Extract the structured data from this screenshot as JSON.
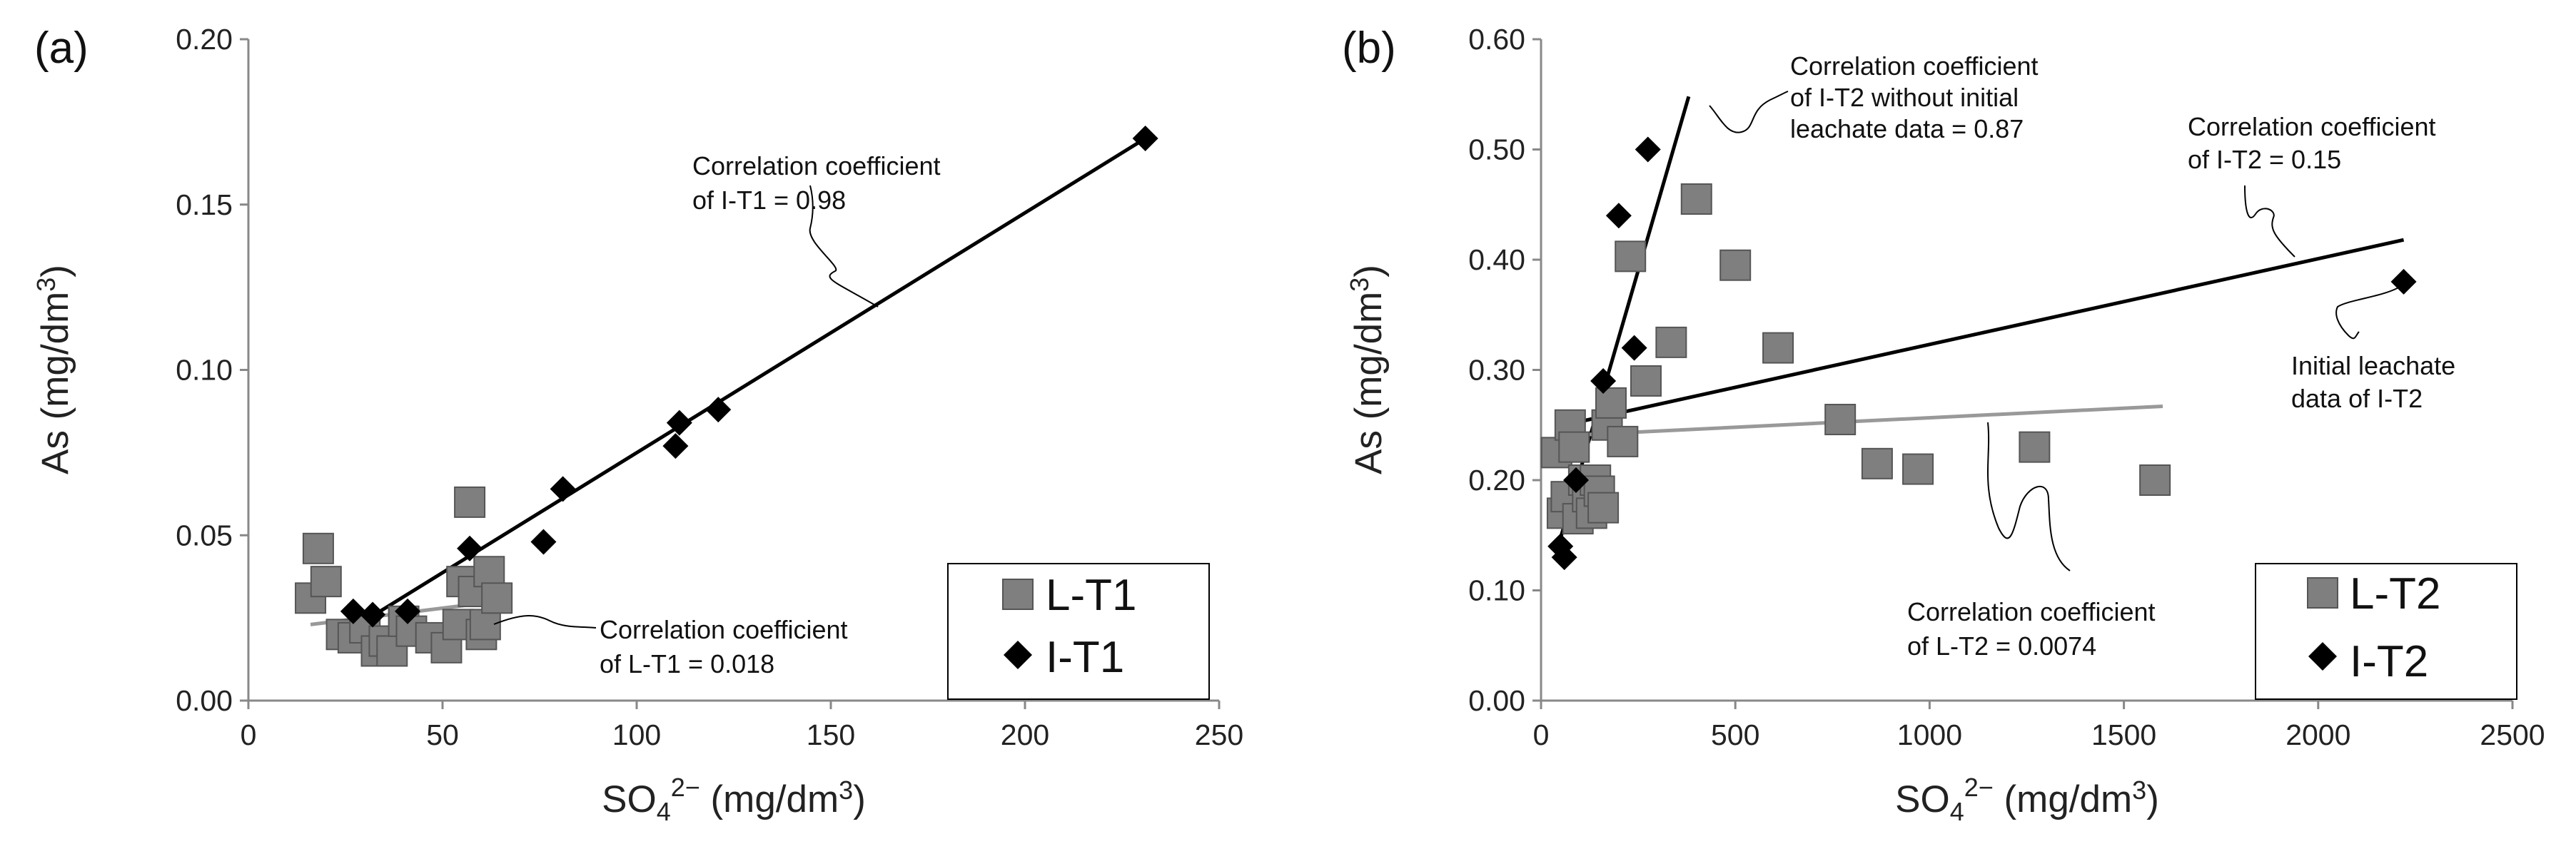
{
  "chart_data": [
    {
      "panel": "(a)",
      "type": "scatter",
      "xlabel": {
        "base": "SO",
        "sub": "4",
        "sup": "2−",
        "units_pre": " (mg/dm",
        "units_sup": "3",
        "units_post": ")"
      },
      "ylabel": {
        "pre": "As (mg/dm",
        "sup": "3",
        "post": ")"
      },
      "xlim": [
        0,
        250
      ],
      "ylim": [
        0,
        0.2
      ],
      "xticks": [
        "0",
        "50",
        "100",
        "150",
        "200",
        "250"
      ],
      "yticks": [
        "0.00",
        "0.05",
        "0.10",
        "0.15",
        "0.20"
      ],
      "grid": false,
      "legend": [
        "L-T1",
        "I-T1"
      ],
      "series": [
        {
          "name": "L-T1",
          "marker": "square",
          "color": "#7f7f7f",
          "points": [
            [
              16,
              0.031
            ],
            [
              18,
              0.046
            ],
            [
              20,
              0.036
            ],
            [
              24,
              0.02
            ],
            [
              27,
              0.019
            ],
            [
              30,
              0.022
            ],
            [
              33,
              0.015
            ],
            [
              35,
              0.018
            ],
            [
              37,
              0.015
            ],
            [
              40,
              0.024
            ],
            [
              42,
              0.021
            ],
            [
              47,
              0.019
            ],
            [
              51,
              0.016
            ],
            [
              54,
              0.023
            ],
            [
              55,
              0.036
            ],
            [
              57,
              0.06
            ],
            [
              58,
              0.033
            ],
            [
              60,
              0.02
            ],
            [
              61,
              0.023
            ],
            [
              62,
              0.039
            ],
            [
              64,
              0.031
            ]
          ]
        },
        {
          "name": "I-T1",
          "marker": "diamond",
          "color": "#000000",
          "points": [
            [
              27,
              0.027
            ],
            [
              32,
              0.026
            ],
            [
              41,
              0.027
            ],
            [
              57,
              0.046
            ],
            [
              76,
              0.048
            ],
            [
              81,
              0.064
            ],
            [
              110,
              0.077
            ],
            [
              111,
              0.084
            ],
            [
              121,
              0.088
            ],
            [
              231,
              0.17
            ]
          ]
        }
      ],
      "trendlines": [
        {
          "name": "I-T1 fit",
          "color": "#000000",
          "x": [
            27,
            231
          ],
          "y": [
            0.022,
            0.17
          ]
        },
        {
          "name": "L-T1 fit",
          "color": "#999999",
          "x": [
            16,
            64
          ],
          "y": [
            0.023,
            0.03
          ]
        }
      ],
      "annotations": [
        {
          "lines": [
            "Correlation coefficient",
            "of I-T1 = 0.98"
          ],
          "at": [
            157,
            0.118
          ]
        },
        {
          "lines": [
            "Correlation coefficient",
            "of L-T1 = 0.018"
          ],
          "at": [
            62,
            0.026
          ]
        }
      ]
    },
    {
      "panel": "(b)",
      "type": "scatter",
      "xlabel": {
        "base": "SO",
        "sub": "4",
        "sup": "2−",
        "units_pre": " (mg/dm",
        "units_sup": "3",
        "units_post": ")"
      },
      "ylabel": {
        "pre": "As (mg/dm",
        "sup": "3",
        "post": ")"
      },
      "xlim": [
        0,
        2500
      ],
      "ylim": [
        0,
        0.6
      ],
      "xticks": [
        "0",
        "500",
        "1000",
        "1500",
        "2000",
        "2500"
      ],
      "yticks": [
        "0.00",
        "0.10",
        "0.20",
        "0.30",
        "0.40",
        "0.50",
        "0.60"
      ],
      "grid": false,
      "legend": [
        "L-T2",
        "I-T2"
      ],
      "series": [
        {
          "name": "L-T2",
          "marker": "square",
          "color": "#7f7f7f",
          "points": [
            [
              40,
              0.225
            ],
            [
              55,
              0.17
            ],
            [
              65,
              0.185
            ],
            [
              75,
              0.25
            ],
            [
              85,
              0.23
            ],
            [
              95,
              0.165
            ],
            [
              110,
              0.2
            ],
            [
              120,
              0.185
            ],
            [
              130,
              0.17
            ],
            [
              140,
              0.2
            ],
            [
              150,
              0.19
            ],
            [
              160,
              0.175
            ],
            [
              170,
              0.25
            ],
            [
              180,
              0.27
            ],
            [
              210,
              0.235
            ],
            [
              230,
              0.403
            ],
            [
              270,
              0.29
            ],
            [
              335,
              0.325
            ],
            [
              400,
              0.455
            ],
            [
              500,
              0.395
            ],
            [
              610,
              0.32
            ],
            [
              770,
              0.255
            ],
            [
              865,
              0.215
            ],
            [
              970,
              0.21
            ],
            [
              1270,
              0.23
            ],
            [
              1580,
              0.2
            ]
          ]
        },
        {
          "name": "I-T2",
          "marker": "diamond",
          "color": "#000000",
          "points": [
            [
              50,
              0.14
            ],
            [
              60,
              0.13
            ],
            [
              90,
              0.2
            ],
            [
              160,
              0.29
            ],
            [
              200,
              0.44
            ],
            [
              240,
              0.32
            ],
            [
              275,
              0.5
            ],
            [
              2220,
              0.38
            ]
          ]
        }
      ],
      "trendlines": [
        {
          "name": "I-T2 fit",
          "color": "#000000",
          "x": [
            60,
            2220
          ],
          "y": [
            0.25,
            0.418
          ]
        },
        {
          "name": "I-T2 fit without initial",
          "color": "#000000",
          "x": [
            40,
            380
          ],
          "y": [
            0.135,
            0.548
          ]
        },
        {
          "name": "L-T2 fit",
          "color": "#999999",
          "x": [
            40,
            1600
          ],
          "y": [
            0.24,
            0.267
          ]
        }
      ],
      "annotations": [
        {
          "lines": [
            "Correlation coefficient",
            "of I-T2 without initial",
            "leachate data = 0.87"
          ],
          "at": [
            350,
            0.54
          ]
        },
        {
          "lines": [
            "Correlation coefficient",
            "of I-T2 = 0.15"
          ],
          "at": [
            1900,
            0.4
          ]
        },
        {
          "lines": [
            "Initial leachate",
            "data of I-T2"
          ],
          "at": [
            2220,
            0.37
          ]
        },
        {
          "lines": [
            "Correlation coefficient",
            "of L-T2 = 0.0074"
          ],
          "at": [
            1150,
            0.255
          ]
        }
      ]
    }
  ]
}
